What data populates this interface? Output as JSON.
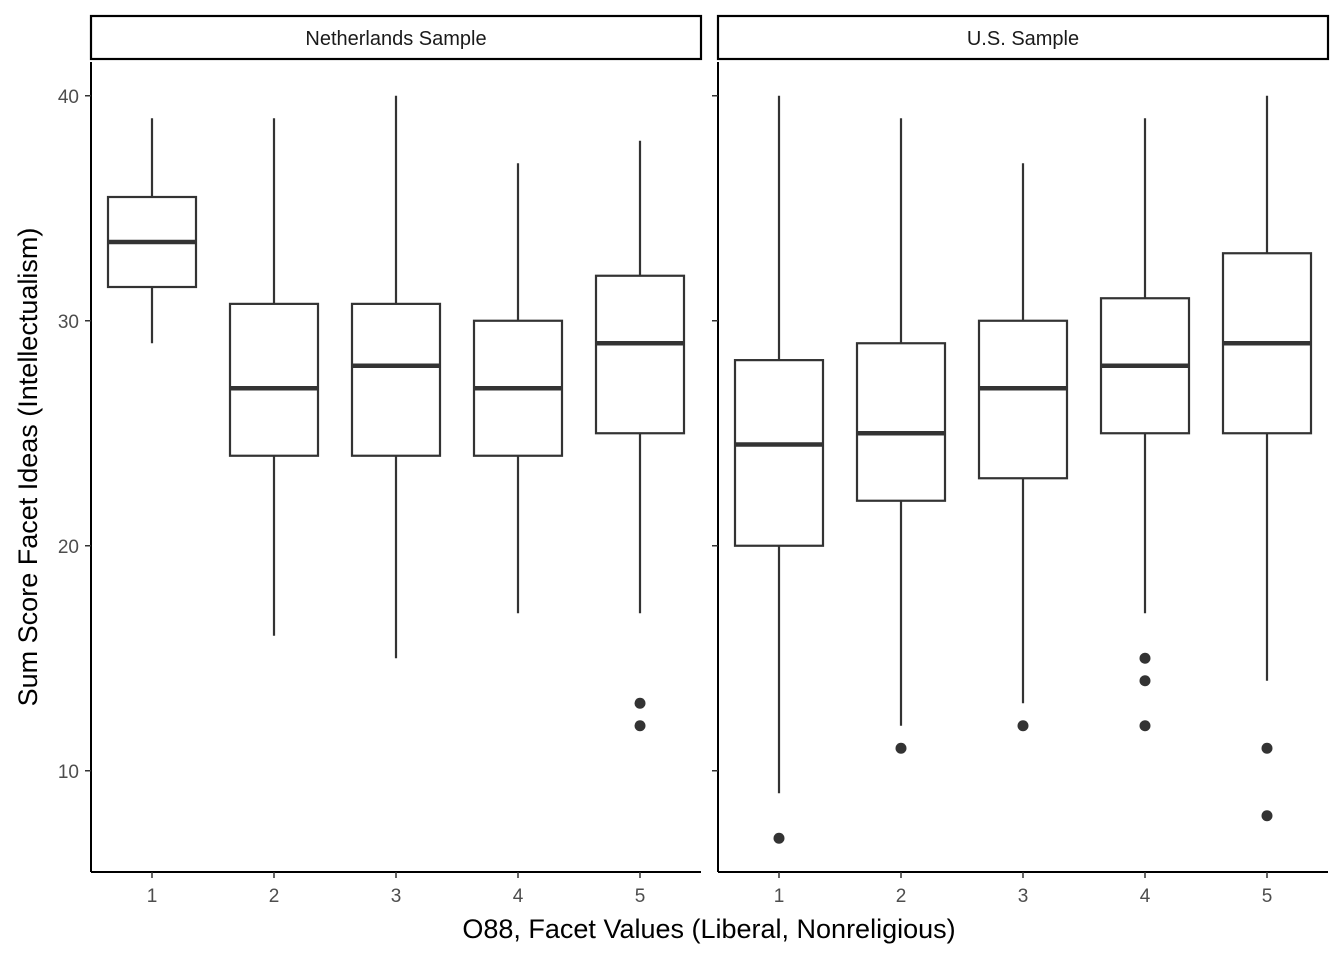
{
  "chart_data": {
    "type": "boxplot",
    "xlabel": "O88, Facet Values (Liberal, Nonreligious)",
    "ylabel": "Sum Score Facet Ideas (Intellectualism)",
    "ylim": [
      5.5,
      41.5
    ],
    "yticks": [
      10,
      20,
      30,
      40
    ],
    "categories": [
      "1",
      "2",
      "3",
      "4",
      "5"
    ],
    "grid": false,
    "panels": [
      {
        "name": "Netherlands Sample",
        "boxes": [
          {
            "x": "1",
            "lower": 29,
            "q1": 31.5,
            "median": 33.5,
            "q3": 35.5,
            "upper": 39,
            "outliers": []
          },
          {
            "x": "2",
            "lower": 16,
            "q1": 24,
            "median": 27,
            "q3": 30.75,
            "upper": 39,
            "outliers": []
          },
          {
            "x": "3",
            "lower": 15,
            "q1": 24,
            "median": 28,
            "q3": 30.75,
            "upper": 40,
            "outliers": []
          },
          {
            "x": "4",
            "lower": 17,
            "q1": 24,
            "median": 27,
            "q3": 30,
            "upper": 37,
            "outliers": []
          },
          {
            "x": "5",
            "lower": 17,
            "q1": 25,
            "median": 29,
            "q3": 32,
            "upper": 38,
            "outliers": [
              12,
              13
            ]
          }
        ]
      },
      {
        "name": "U.S. Sample",
        "boxes": [
          {
            "x": "1",
            "lower": 9,
            "q1": 20,
            "median": 24.5,
            "q3": 28.25,
            "upper": 40,
            "outliers": [
              7
            ]
          },
          {
            "x": "2",
            "lower": 12,
            "q1": 22,
            "median": 25,
            "q3": 29,
            "upper": 39,
            "outliers": [
              11
            ]
          },
          {
            "x": "3",
            "lower": 13,
            "q1": 23,
            "median": 27,
            "q3": 30,
            "upper": 37,
            "outliers": [
              12
            ]
          },
          {
            "x": "4",
            "lower": 17,
            "q1": 25,
            "median": 28,
            "q3": 31,
            "upper": 39,
            "outliers": [
              12,
              14,
              15
            ]
          },
          {
            "x": "5",
            "lower": 14,
            "q1": 25,
            "median": 29,
            "q3": 33,
            "upper": 40,
            "outliers": [
              8,
              11
            ]
          }
        ]
      }
    ],
    "colors": {
      "box_line": "#333333",
      "axis": "#000000",
      "point": "#333333",
      "strip_fill": "#ffffff"
    }
  }
}
